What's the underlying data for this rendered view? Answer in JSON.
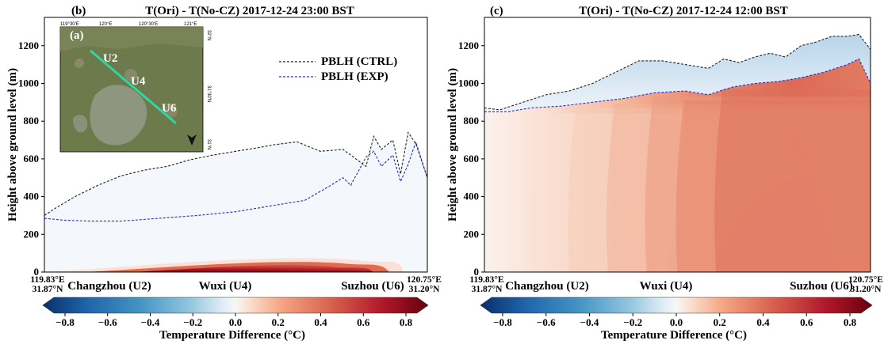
{
  "figure": {
    "panels": [
      {
        "letter": "(b)",
        "title": "T(Ori) - T(No-CZ)  2017-12-24 23:00 BST",
        "ylabel": "Height above ground level (m)",
        "yticks": [
          "0",
          "200",
          "400",
          "600",
          "800",
          "1000",
          "1200"
        ],
        "x_start_lon": "119.83°E",
        "x_start_lat": "31.87°N",
        "x_end_lon": "120.75°E",
        "x_end_lat": "31.20°N",
        "sites": [
          "Changzhou (U2)",
          "Wuxi (U4)",
          "Suzhou (U6)"
        ],
        "legend": [
          "PBLH (CTRL)",
          "PBLH (EXP)"
        ],
        "colorbar_ticks": [
          "−0.8",
          "−0.6",
          "−0.4",
          "−0.2",
          "0.0",
          "0.2",
          "0.4",
          "0.6",
          "0.8"
        ],
        "colorbar_label": "Temperature Difference (°C)"
      },
      {
        "letter": "(c)",
        "title": "T(Ori) - T(No-CZ)  2017-12-24 12:00 BST",
        "ylabel": "Height above ground level (m)",
        "yticks": [
          "0",
          "200",
          "400",
          "600",
          "800",
          "1000",
          "1200"
        ],
        "x_start_lon": "119.83°E",
        "x_start_lat": "31.87°N",
        "x_end_lon": "120.75°E",
        "x_end_lat": "31.20°N",
        "sites": [
          "Changzhou (U2)",
          "Wuxi (U4)",
          "Suzhou (U6)"
        ],
        "colorbar_ticks": [
          "−0.8",
          "−0.6",
          "−0.4",
          "−0.2",
          "0.0",
          "0.2",
          "0.4",
          "0.6",
          "0.8"
        ],
        "colorbar_label": "Temperature Difference (°C)"
      }
    ],
    "inset_map": {
      "letter": "(a)",
      "top_ticks": [
        "119°30'E",
        "120°E",
        "120°30'E",
        "121°E"
      ],
      "right_ticks": [
        "32°N",
        "31°30'N",
        "31°N"
      ],
      "site_labels": [
        "U2",
        "U4",
        "U6"
      ],
      "colors": {
        "transect": "#2fd6a3",
        "land": "#6f7a4c",
        "water": "#8f9680"
      }
    },
    "colors": {
      "ctrl_line": "#222222",
      "exp_line": "#2a2ac8",
      "cold": "#08306b",
      "warm": "#67000d"
    }
  },
  "chart_data": [
    {
      "type": "heatmap",
      "title": "T(Ori) - T(No-CZ)  2017-12-24 23:00 BST",
      "xlabel": "",
      "ylabel": "Height above ground level (m)",
      "xlim": [
        0,
        1
      ],
      "ylim": [
        0,
        1350
      ],
      "colorbar_range": [
        -0.8,
        0.8
      ],
      "series": [
        {
          "name": "PBLH (CTRL)",
          "x": [
            0,
            0.03,
            0.08,
            0.14,
            0.2,
            0.26,
            0.32,
            0.38,
            0.44,
            0.5,
            0.56,
            0.6,
            0.66,
            0.72,
            0.78,
            0.8,
            0.84,
            0.86,
            0.88,
            0.91,
            0.93,
            0.95,
            0.97,
            1.0
          ],
          "y": [
            300,
            340,
            400,
            460,
            510,
            540,
            560,
            595,
            620,
            640,
            660,
            675,
            690,
            640,
            650,
            620,
            560,
            720,
            650,
            700,
            520,
            740,
            680,
            500
          ]
        },
        {
          "name": "PBLH (EXP)",
          "x": [
            0,
            0.05,
            0.12,
            0.2,
            0.3,
            0.4,
            0.5,
            0.56,
            0.62,
            0.68,
            0.74,
            0.78,
            0.8,
            0.84,
            0.86,
            0.88,
            0.91,
            0.93,
            0.95,
            0.97,
            1.0
          ],
          "y": [
            285,
            275,
            270,
            270,
            285,
            300,
            320,
            340,
            360,
            380,
            450,
            500,
            460,
            610,
            640,
            560,
            620,
            480,
            570,
            690,
            500
          ]
        }
      ],
      "features": {
        "surface_warm_layer": {
          "x_range": [
            0.02,
            0.9
          ],
          "max_height": 80,
          "max_value": 0.8
        },
        "background_value": -0.05
      }
    },
    {
      "type": "heatmap",
      "title": "T(Ori) - T(No-CZ)  2017-12-24 12:00 BST",
      "xlabel": "",
      "ylabel": "Height above ground level (m)",
      "xlim": [
        0,
        1
      ],
      "ylim": [
        0,
        1350
      ],
      "colorbar_range": [
        -0.8,
        0.8
      ],
      "series": [
        {
          "x": [
            0,
            0.04,
            0.1,
            0.16,
            0.22,
            0.28,
            0.34,
            0.4,
            0.46,
            0.52,
            0.58,
            0.62,
            0.66,
            0.7,
            0.74,
            0.78,
            0.82,
            0.86,
            0.9,
            0.94,
            0.97,
            1.0
          ],
          "y": [
            870,
            860,
            900,
            940,
            960,
            1000,
            1060,
            1120,
            1120,
            1100,
            1080,
            1130,
            1110,
            1140,
            1160,
            1140,
            1200,
            1220,
            1250,
            1250,
            1260,
            1180
          ]
        },
        {
          "x": [
            0,
            0.06,
            0.12,
            0.2,
            0.28,
            0.36,
            0.44,
            0.52,
            0.58,
            0.64,
            0.7,
            0.76,
            0.82,
            0.88,
            0.94,
            0.97,
            1.0
          ],
          "y": [
            850,
            850,
            870,
            880,
            900,
            920,
            950,
            960,
            940,
            980,
            1000,
            1010,
            1030,
            1060,
            1100,
            1130,
            1000
          ]
        }
      ],
      "features": {
        "warm_core": {
          "x_range": [
            0.55,
            0.97
          ],
          "max_height": 850,
          "max_value": 0.55
        },
        "cool_band_above_pbl": -0.15
      }
    }
  ]
}
